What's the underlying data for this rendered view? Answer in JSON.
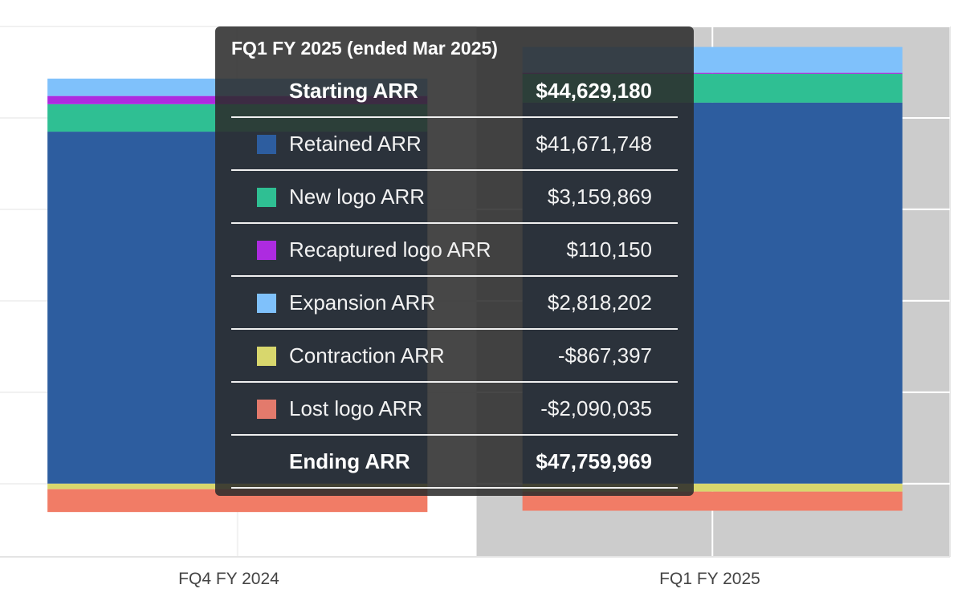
{
  "chart_data": {
    "type": "bar",
    "stacked": true,
    "title": "",
    "xlabel": "",
    "ylabel": "",
    "categories": [
      "FQ4 FY 2024",
      "FQ1 FY 2025"
    ],
    "highlighted_category": "FQ1 FY 2025",
    "ylim": [
      -8000000,
      50000000
    ],
    "grid": true,
    "series": [
      {
        "name": "Retained ARR",
        "color": "#2d5d9f",
        "values": [
          38500000,
          41671748
        ]
      },
      {
        "name": "New logo ARR",
        "color": "#2fbf93",
        "values": [
          3000000,
          3159869
        ]
      },
      {
        "name": "Recaptured logo ARR",
        "color": "#ad2be0",
        "values": [
          900000,
          110150
        ]
      },
      {
        "name": "Expansion ARR",
        "color": "#7fc1fb",
        "values": [
          1900000,
          2818202
        ]
      },
      {
        "name": "Contraction ARR",
        "color": "#d8d76d",
        "values": [
          -600000,
          -867397
        ]
      },
      {
        "name": "Lost logo ARR",
        "color": "#f17c66",
        "values": [
          -2500000,
          -2090035
        ]
      }
    ]
  },
  "tooltip": {
    "title": "FQ1 FY 2025 (ended Mar 2025)",
    "starting": {
      "label": "Starting ARR",
      "value": "$44,629,180"
    },
    "rows": [
      {
        "label": "Retained ARR",
        "value": "$41,671,748",
        "color": "#2d5d9f"
      },
      {
        "label": "New logo ARR",
        "value": "$3,159,869",
        "color": "#2fbf93"
      },
      {
        "label": "Recaptured logo ARR",
        "value": "$110,150",
        "color": "#ad2be0"
      },
      {
        "label": "Expansion ARR",
        "value": "$2,818,202",
        "color": "#7fc1fb"
      },
      {
        "label": "Contraction ARR",
        "value": "-$867,397",
        "color": "#d8d76d"
      },
      {
        "label": "Lost logo ARR",
        "value": "-$2,090,035",
        "color": "#e37a6c"
      }
    ],
    "ending": {
      "label": "Ending ARR",
      "value": "$47,759,969"
    }
  }
}
